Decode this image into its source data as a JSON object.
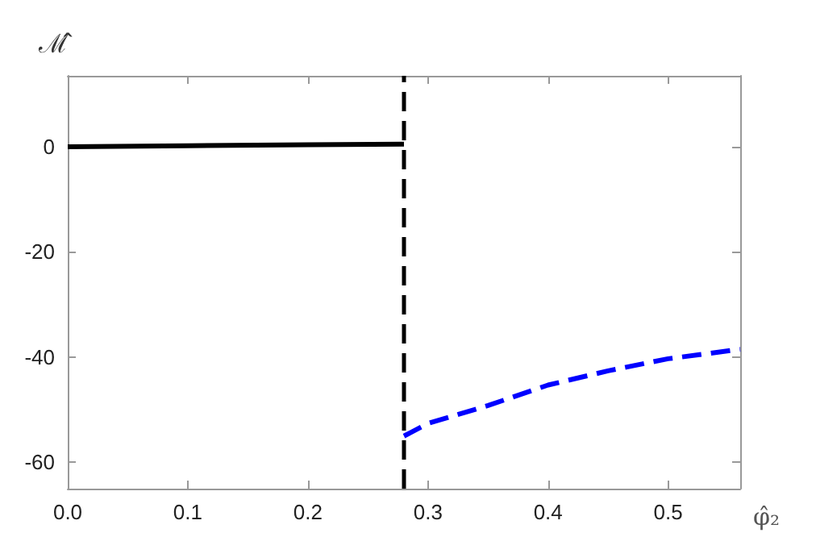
{
  "chart_data": {
    "type": "line",
    "xlabel": "φ̂₂",
    "ylabel": "ℳ̂",
    "series": [
      {
        "color": "#000000",
        "line_style": "solid",
        "x": [
          0,
          0.1,
          0.2,
          0.28
        ],
        "values": [
          0,
          0.2,
          0.4,
          0.5
        ]
      },
      {
        "color": "#0000ff",
        "line_style": "dashed",
        "x": [
          0.28,
          0.3,
          0.35,
          0.4,
          0.45,
          0.5,
          0.56
        ],
        "values": [
          -55,
          -52.6,
          -49.2,
          -45.3,
          -42.6,
          -40.3,
          -38.5
        ]
      }
    ],
    "ref_lines": [
      {
        "axis": "x",
        "value": 0.28,
        "color": "#000000",
        "line_style": "dashed"
      }
    ],
    "xlim": [
      0,
      0.56
    ],
    "xticks": [
      {
        "value": 0,
        "label": "0.0"
      },
      0.1,
      0.2,
      0.3,
      0.4,
      0.5
    ],
    "ylim": [
      -65,
      13.5
    ],
    "yticks": [
      -60,
      -40,
      -20,
      0
    ],
    "grid": false,
    "marker": "none"
  }
}
